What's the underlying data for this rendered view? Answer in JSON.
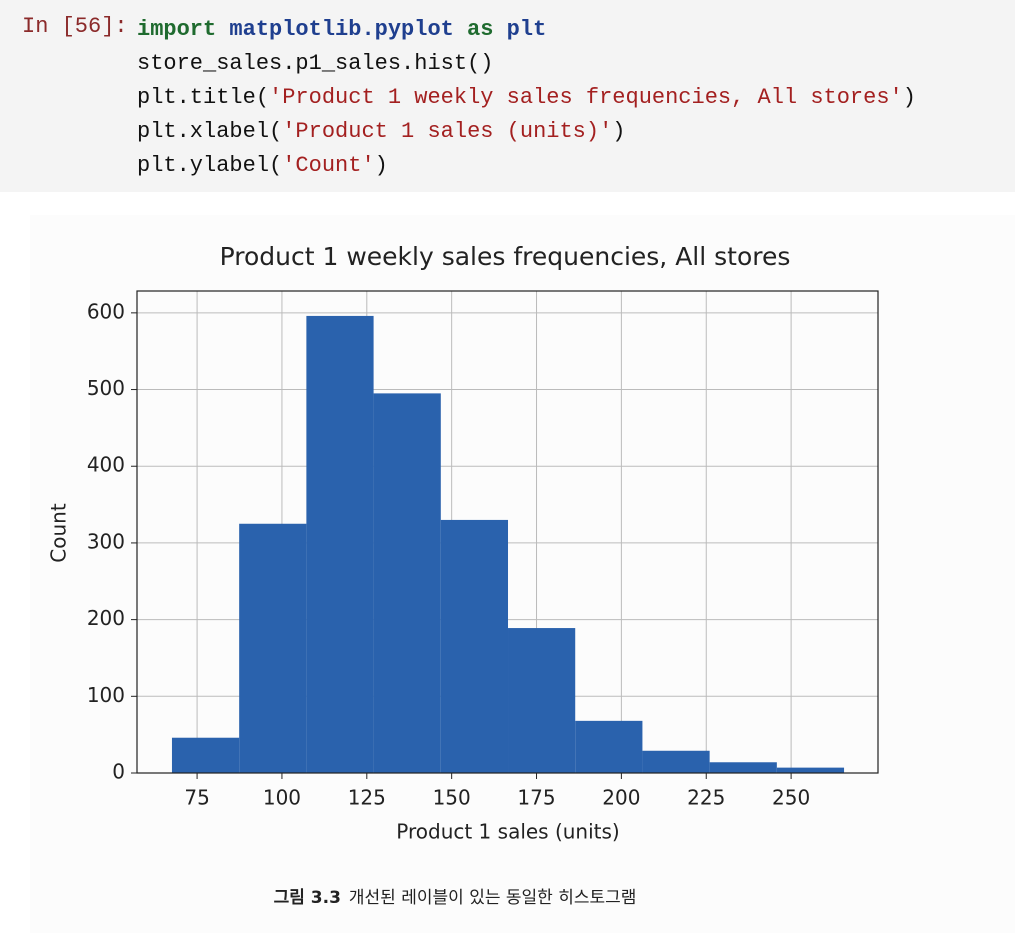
{
  "code_cell": {
    "prompt": "In [56]:",
    "lines": [
      [
        {
          "text": "import",
          "color": "#1f6b2f",
          "bold": true
        },
        {
          "text": " matplotlib.pyplot",
          "color": "#1f3f8f",
          "bold": true
        },
        {
          "text": " as",
          "color": "#1f6b2f",
          "bold": true
        },
        {
          "text": " plt",
          "color": "#1f3f8f",
          "bold": true
        }
      ],
      [
        {
          "text": "store_sales.p1_sales.hist()",
          "color": "#111111",
          "bold": false
        }
      ],
      [
        {
          "text": "plt.title(",
          "color": "#111111",
          "bold": false
        },
        {
          "text": "'Product 1 weekly sales frequencies, All stores'",
          "color": "#a32020",
          "bold": false
        },
        {
          "text": ")",
          "color": "#111111",
          "bold": false
        }
      ],
      [
        {
          "text": "plt.xlabel(",
          "color": "#111111",
          "bold": false
        },
        {
          "text": "'Product 1 sales (units)'",
          "color": "#a32020",
          "bold": false
        },
        {
          "text": ")",
          "color": "#111111",
          "bold": false
        }
      ],
      [
        {
          "text": "plt.ylabel(",
          "color": "#111111",
          "bold": false
        },
        {
          "text": "'Count'",
          "color": "#a32020",
          "bold": false
        },
        {
          "text": ")",
          "color": "#111111",
          "bold": false
        }
      ]
    ]
  },
  "chart_data": {
    "type": "histogram",
    "title": "Product 1 weekly sales frequencies, All stores",
    "x_label": "Product 1 sales (units)",
    "y_label": "Count",
    "bins": [
      67.6,
      87.4,
      107.2,
      127.0,
      146.8,
      166.6,
      186.4,
      206.2,
      226.0,
      245.8,
      265.6
    ],
    "values": [
      46,
      325,
      596,
      495,
      330,
      189,
      68,
      29,
      14,
      7
    ],
    "color": "#2a62ad",
    "xlim": [
      57.3,
      275.6
    ],
    "xticks": [
      75,
      100,
      125,
      150,
      175,
      200,
      225,
      250
    ],
    "ylim": [
      0,
      628.5
    ],
    "yticks": [
      0,
      100,
      200,
      300,
      400,
      500,
      600
    ],
    "grid": true
  },
  "caption": {
    "label": "그림 3.3",
    "text": "개선된 레이블이 있는 동일한 히스토그램"
  }
}
